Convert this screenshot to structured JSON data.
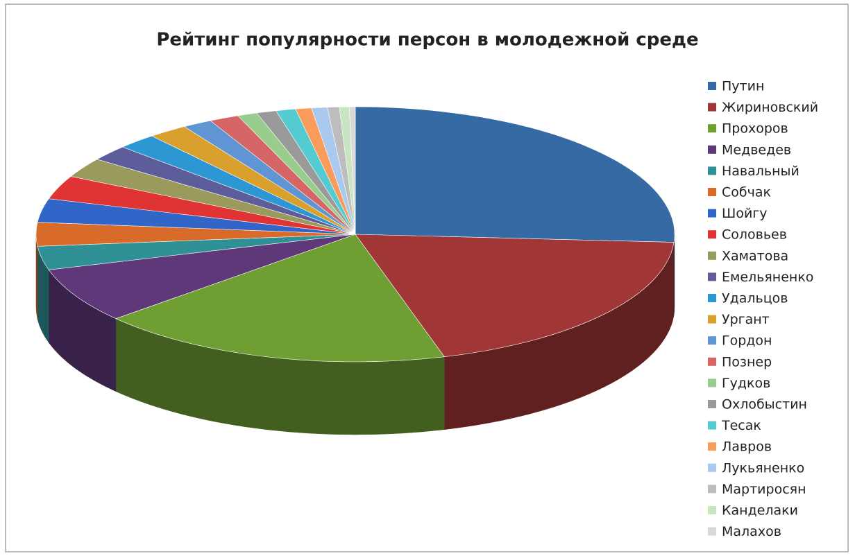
{
  "chart_data": {
    "type": "pie3d",
    "title": "Рейтинг популярности персон в молодежной среде",
    "categories": [
      "Путин",
      "Жириновский",
      "Прохоров",
      "Медведев",
      "Навальный",
      "Собчак",
      "Шойгу",
      "Соловьев",
      "Хаматова",
      "Емельяненко",
      "Удальцов",
      "Ургант",
      "Гордон",
      "Познер",
      "Гудков",
      "Охлобыстин",
      "Тесак",
      "Лавров",
      "Лукьяненко",
      "Мартиросян",
      "Канделаки",
      "Малахов"
    ],
    "values": [
      26,
      19.5,
      18,
      7,
      3,
      3,
      3,
      3,
      2.5,
      2,
      2,
      2,
      1.5,
      1.5,
      1,
      1,
      1,
      0.8,
      0.8,
      0.6,
      0.5,
      0.3
    ],
    "colors": [
      "#356aa5",
      "#a03636",
      "#6f9e33",
      "#5f3879",
      "#2f9196",
      "#d86b29",
      "#3165c8",
      "#e03434",
      "#9a9a5c",
      "#5e5d9b",
      "#2c97d2",
      "#d9a02d",
      "#5f95d2",
      "#d66666",
      "#98cd8d",
      "#9a9a9a",
      "#53cbd1",
      "#f99c5b",
      "#a9c9ef",
      "#bdbdbd",
      "#c8e4c1",
      "#d8d8d8"
    ],
    "legend": "right"
  }
}
